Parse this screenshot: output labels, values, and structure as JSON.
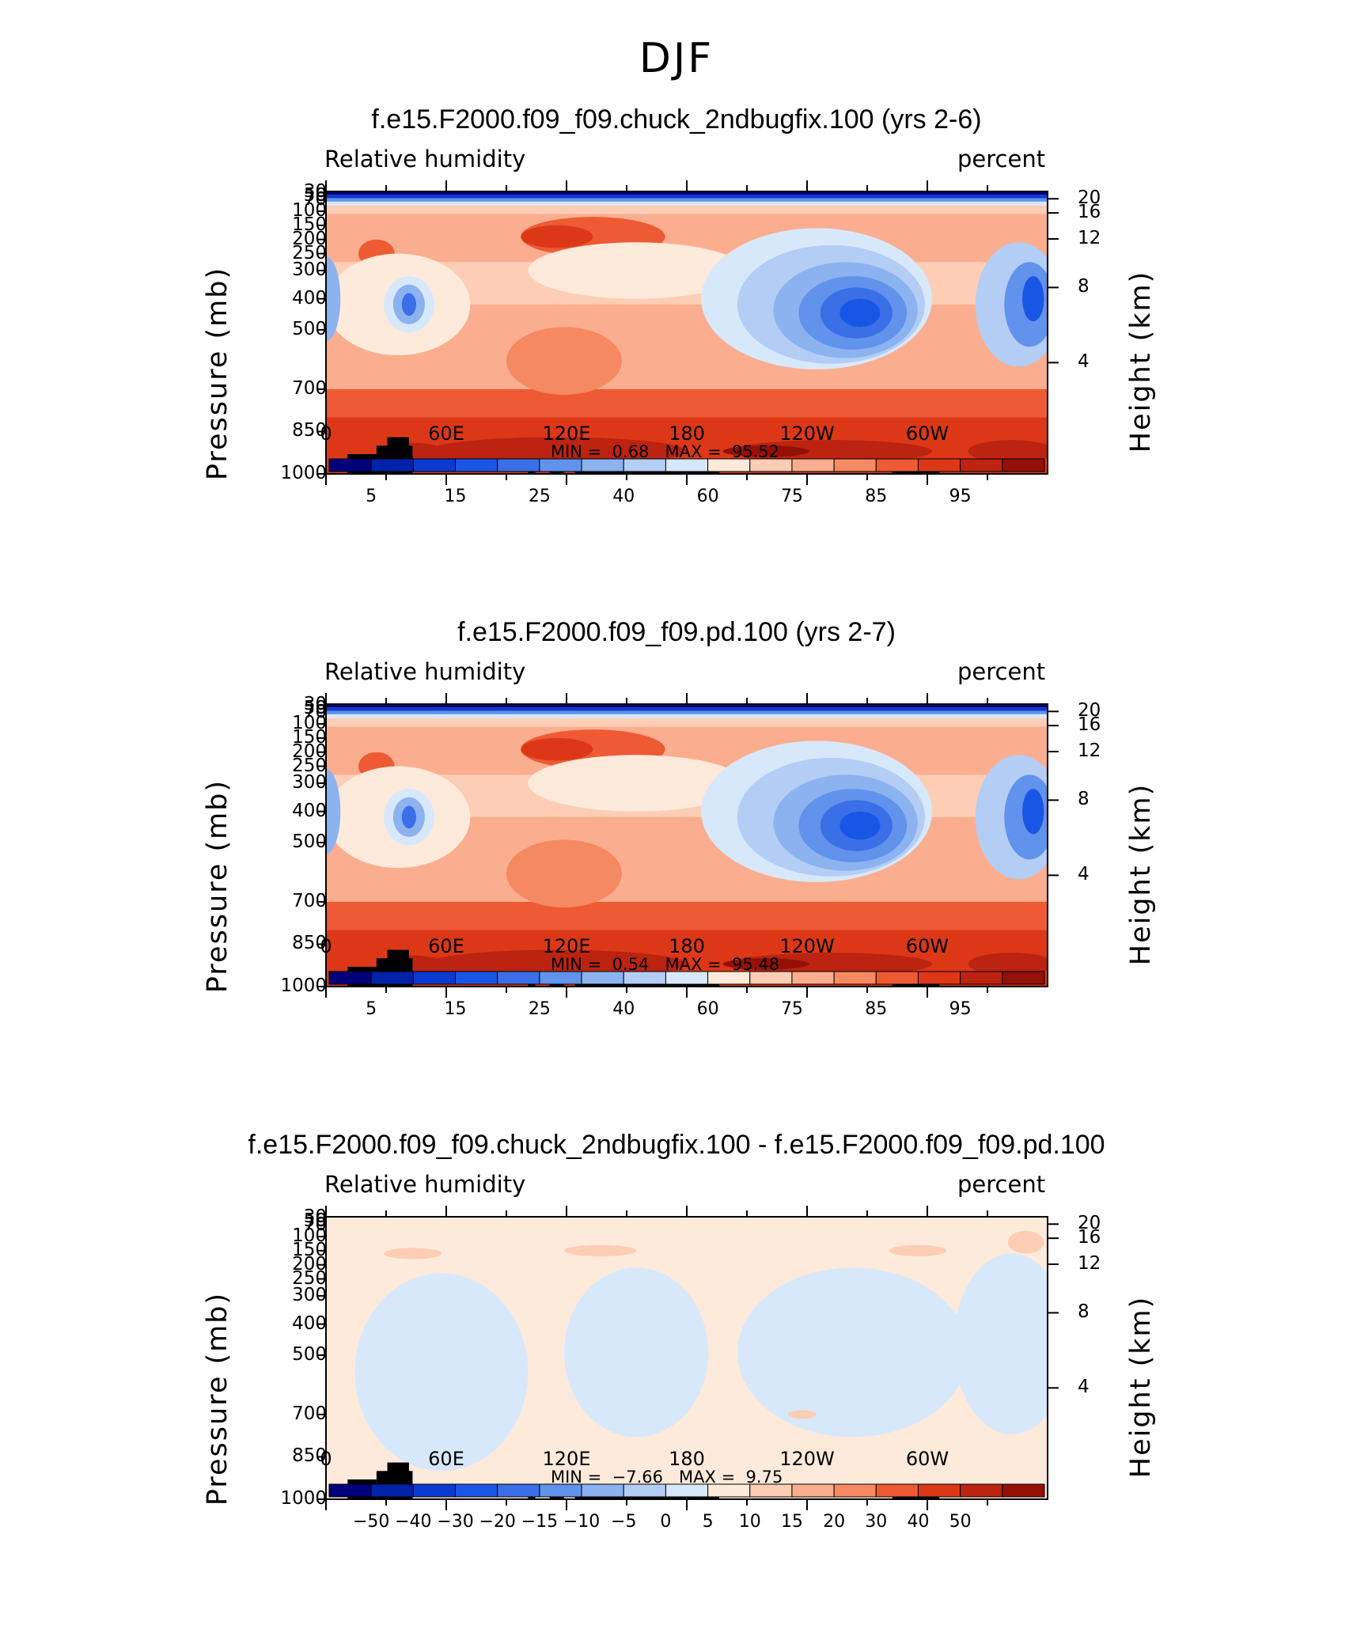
{
  "page": {
    "title": "DJF"
  },
  "chart_data": [
    {
      "type": "heatmap",
      "title": "f.e15.F2000.f09_f09.chuck_2ndbugfix.100 (yrs 2-6)",
      "variable": "Relative humidity",
      "units": "percent",
      "ylabel": "Pressure (mb)",
      "y2label": "Height (km)",
      "y_ticks": [
        "30",
        "50",
        "70",
        "100",
        "150",
        "200",
        "250",
        "300",
        "400",
        "500",
        "700",
        "850",
        "1000"
      ],
      "y2_ticks": [
        "20",
        "16",
        "12",
        "8",
        "4"
      ],
      "x_ticks": [
        "0",
        "60E",
        "120E",
        "180",
        "120W",
        "60W"
      ],
      "min_label": "MIN =",
      "min": "0.68",
      "max_label": "MAX =",
      "max": "95.52",
      "levels": [
        "5",
        "15",
        "25",
        "40",
        "60",
        "75",
        "85",
        "95"
      ],
      "colorbar": [
        "#00007a",
        "#0022a8",
        "#0a3ad0",
        "#1a56e6",
        "#3a6fe8",
        "#6192ec",
        "#8cb2f0",
        "#b4cdf5",
        "#d8e8fb",
        "#feeadb",
        "#fdcdb5",
        "#fbae8f",
        "#f58962",
        "#ee5a33",
        "#dc3818",
        "#bc2310",
        "#941009"
      ]
    },
    {
      "type": "heatmap",
      "title": "f.e15.F2000.f09_f09.pd.100 (yrs 2-7)",
      "variable": "Relative humidity",
      "units": "percent",
      "ylabel": "Pressure (mb)",
      "y2label": "Height (km)",
      "y_ticks": [
        "30",
        "50",
        "70",
        "100",
        "150",
        "200",
        "250",
        "300",
        "400",
        "500",
        "700",
        "850",
        "1000"
      ],
      "y2_ticks": [
        "20",
        "16",
        "12",
        "8",
        "4"
      ],
      "x_ticks": [
        "0",
        "60E",
        "120E",
        "180",
        "120W",
        "60W"
      ],
      "min_label": "MIN =",
      "min": "0.54",
      "max_label": "MAX =",
      "max": "95.48",
      "levels": [
        "5",
        "15",
        "25",
        "40",
        "60",
        "75",
        "85",
        "95"
      ],
      "colorbar": [
        "#00007a",
        "#0022a8",
        "#0a3ad0",
        "#1a56e6",
        "#3a6fe8",
        "#6192ec",
        "#8cb2f0",
        "#b4cdf5",
        "#d8e8fb",
        "#feeadb",
        "#fdcdb5",
        "#fbae8f",
        "#f58962",
        "#ee5a33",
        "#dc3818",
        "#bc2310",
        "#941009"
      ]
    },
    {
      "type": "heatmap",
      "title": "f.e15.F2000.f09_f09.chuck_2ndbugfix.100 - f.e15.F2000.f09_f09.pd.100",
      "variable": "Relative humidity",
      "units": "percent",
      "ylabel": "Pressure (mb)",
      "y2label": "Height (km)",
      "y_ticks": [
        "30",
        "50",
        "70",
        "100",
        "150",
        "200",
        "250",
        "300",
        "400",
        "500",
        "700",
        "850",
        "1000"
      ],
      "y2_ticks": [
        "20",
        "16",
        "12",
        "8",
        "4"
      ],
      "x_ticks": [
        "0",
        "60E",
        "120E",
        "180",
        "120W",
        "60W"
      ],
      "min_label": "MIN =",
      "min": "−7.66",
      "max_label": "MAX =",
      "max": "9.75",
      "levels": [
        "−50",
        "−40",
        "−30",
        "−20",
        "−15",
        "−10",
        "−5",
        "0",
        "5",
        "10",
        "15",
        "20",
        "30",
        "40",
        "50"
      ],
      "colorbar": [
        "#00007a",
        "#0022a8",
        "#0a3ad0",
        "#1a56e6",
        "#3a6fe8",
        "#6192ec",
        "#8cb2f0",
        "#b4cdf5",
        "#d8e8fb",
        "#feeadb",
        "#fdcdb5",
        "#fbae8f",
        "#f58962",
        "#ee5a33",
        "#dc3818",
        "#bc2310",
        "#941009"
      ]
    }
  ]
}
